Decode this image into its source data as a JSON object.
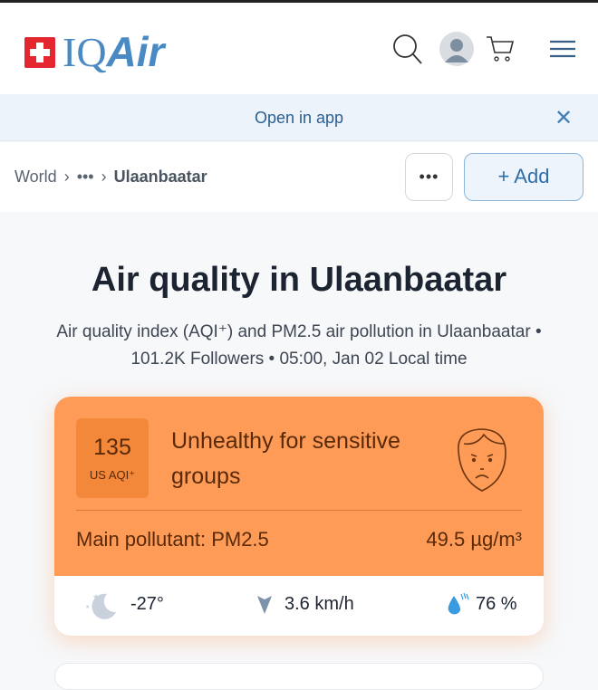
{
  "header": {
    "logo": "IQAir",
    "icons": [
      "search-icon",
      "avatar",
      "cart-icon",
      "menu-icon"
    ]
  },
  "banner": {
    "label": "Open in app",
    "close": "✕"
  },
  "breadcrumb": {
    "items": [
      "World",
      "•••",
      "Ulaanbaatar"
    ],
    "more": "•••",
    "add": "+ Add"
  },
  "page": {
    "title": "Air quality in Ulaanbaatar",
    "subtitle_1": "Air quality index (AQI⁺) and PM2.5 air pollution in Ulaanbaatar •",
    "subtitle_2": "101.2K Followers • 05:00, Jan 02 Local time"
  },
  "aqi": {
    "value": "135",
    "unit": "US AQI⁺",
    "status": "Unhealthy for sensitive groups",
    "pollutant": "Main pollutant: PM2.5",
    "concentration": "49.5 µg/m³",
    "color": "#fe9b57"
  },
  "weather": {
    "temperature": "-27°",
    "wind": "3.6 km/h",
    "humidity": "76 %",
    "icons": [
      "moon-icon",
      "wind-direction-icon",
      "humidity-icon"
    ]
  }
}
